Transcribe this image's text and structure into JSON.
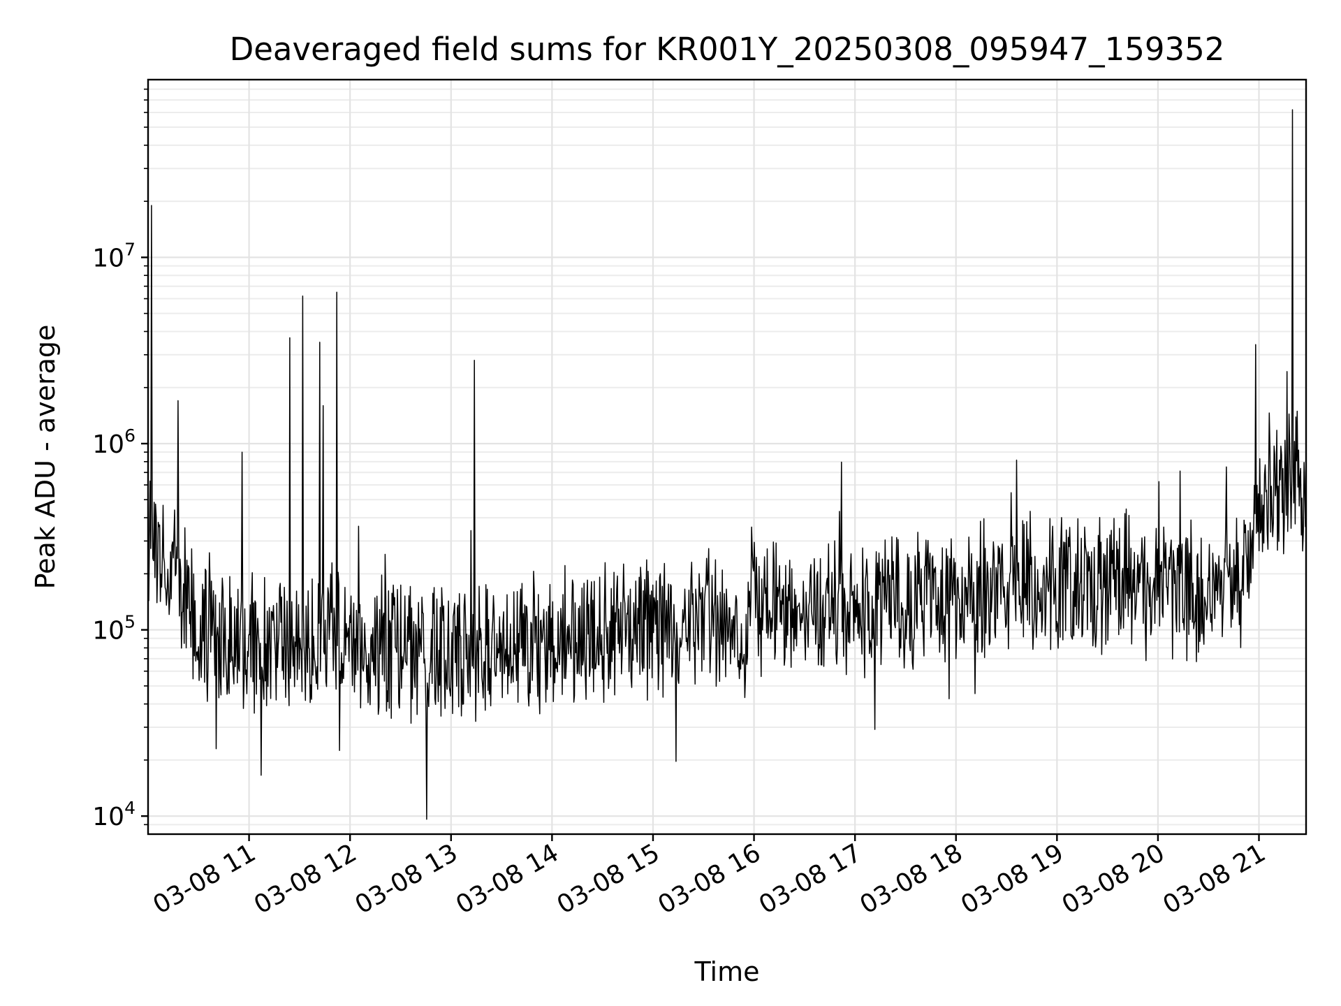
{
  "chart_data": {
    "type": "line",
    "title": "Deaveraged field sums for KR001Y_20250308_095947_159352",
    "xlabel": "Time",
    "ylabel": "Peak ADU - average",
    "y_scale": "log",
    "ylim": [
      8000,
      90000000
    ],
    "xlim": [
      "2025-03-08 10:00",
      "2025-03-08 21:28"
    ],
    "grid": "on (major and minor)",
    "x_ticks": [
      {
        "value": "2025-03-08 11:00",
        "label": "03-08 11"
      },
      {
        "value": "2025-03-08 12:00",
        "label": "03-08 12"
      },
      {
        "value": "2025-03-08 13:00",
        "label": "03-08 13"
      },
      {
        "value": "2025-03-08 14:00",
        "label": "03-08 14"
      },
      {
        "value": "2025-03-08 15:00",
        "label": "03-08 15"
      },
      {
        "value": "2025-03-08 16:00",
        "label": "03-08 16"
      },
      {
        "value": "2025-03-08 17:00",
        "label": "03-08 17"
      },
      {
        "value": "2025-03-08 18:00",
        "label": "03-08 18"
      },
      {
        "value": "2025-03-08 19:00",
        "label": "03-08 19"
      },
      {
        "value": "2025-03-08 20:00",
        "label": "03-08 20"
      },
      {
        "value": "2025-03-08 21:00",
        "label": "03-08 21"
      }
    ],
    "y_ticks": [
      {
        "value": 10000,
        "base": "10",
        "exp": "4"
      },
      {
        "value": 100000,
        "base": "10",
        "exp": "5"
      },
      {
        "value": 1000000,
        "base": "10",
        "exp": "6"
      },
      {
        "value": 10000000,
        "base": "10",
        "exp": "7"
      }
    ],
    "series": [
      {
        "color": "#000000",
        "x": [
          "2025-03-08 10:00",
          "2025-03-08 10:10",
          "2025-03-08 10:20",
          "2025-03-08 10:30",
          "2025-03-08 10:40",
          "2025-03-08 10:50",
          "2025-03-08 11:00",
          "2025-03-08 11:15",
          "2025-03-08 11:30",
          "2025-03-08 11:45",
          "2025-03-08 12:00",
          "2025-03-08 12:20",
          "2025-03-08 12:40",
          "2025-03-08 13:00",
          "2025-03-08 13:20",
          "2025-03-08 13:40",
          "2025-03-08 14:00",
          "2025-03-08 14:20",
          "2025-03-08 14:40",
          "2025-03-08 15:00",
          "2025-03-08 15:30",
          "2025-03-08 16:00",
          "2025-03-08 16:30",
          "2025-03-08 17:00",
          "2025-03-08 17:30",
          "2025-03-08 18:00",
          "2025-03-08 18:30",
          "2025-03-08 19:00",
          "2025-03-08 19:30",
          "2025-03-08 20:00",
          "2025-03-08 20:30",
          "2025-03-08 20:50",
          "2025-03-08 21:00",
          "2025-03-08 21:10",
          "2025-03-08 21:20",
          "2025-03-08 21:28"
        ],
        "values": [
          350000,
          250000,
          160000,
          110000,
          95000,
          90000,
          88000,
          90000,
          95000,
          92000,
          85000,
          78000,
          75000,
          76000,
          78000,
          82000,
          88000,
          95000,
          102000,
          108000,
          115000,
          122000,
          130000,
          140000,
          150000,
          158000,
          165000,
          175000,
          180000,
          170000,
          160000,
          170000,
          450000,
          550000,
          600000,
          580000
        ]
      }
    ],
    "spikes": [
      {
        "x": "2025-03-08 10:02",
        "y": 19000000
      },
      {
        "x": "2025-03-08 10:18",
        "y": 1700000
      },
      {
        "x": "2025-03-08 10:56",
        "y": 900000
      },
      {
        "x": "2025-03-08 11:24",
        "y": 3700000
      },
      {
        "x": "2025-03-08 11:32",
        "y": 6200000
      },
      {
        "x": "2025-03-08 11:42",
        "y": 3500000
      },
      {
        "x": "2025-03-08 11:44",
        "y": 1600000
      },
      {
        "x": "2025-03-08 11:52",
        "y": 6500000
      },
      {
        "x": "2025-03-08 12:05",
        "y": 360000
      },
      {
        "x": "2025-03-08 13:14",
        "y": 2800000
      },
      {
        "x": "2025-03-08 20:58",
        "y": 3400000
      },
      {
        "x": "2025-03-08 21:20",
        "y": 62000000
      }
    ]
  }
}
